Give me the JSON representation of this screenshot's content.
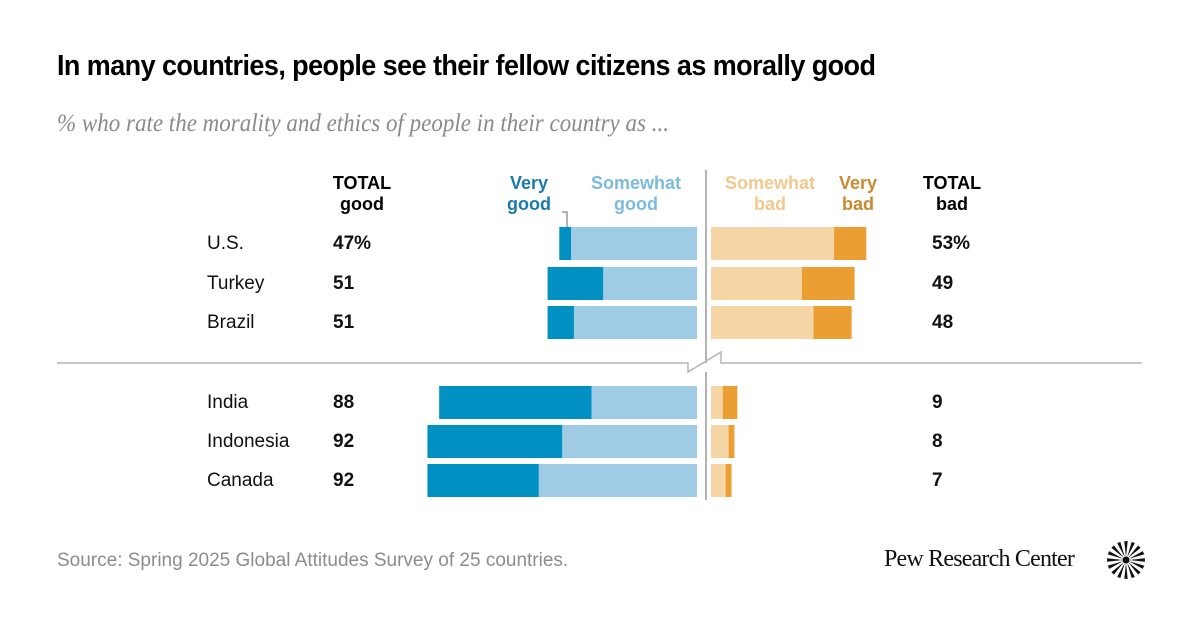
{
  "title": "In many countries, people see their fellow citizens as morally good",
  "subtitle": "% who rate the morality and ethics of people in their country as ...",
  "headers": {
    "total_good": [
      "TOTAL",
      "good"
    ],
    "very_good": [
      "Very",
      "good"
    ],
    "somewhat_good": [
      "Somewhat",
      "good"
    ],
    "somewhat_bad": [
      "Somewhat",
      "bad"
    ],
    "very_bad": [
      "Very",
      "bad"
    ],
    "total_bad": [
      "TOTAL",
      "bad"
    ]
  },
  "colors": {
    "very_good": "#0091c2",
    "somewhat_good": "#9fcbe5",
    "somewhat_bad": "#f6d6a6",
    "very_bad": "#eb9f32",
    "very_good_label": "#1a7aaa",
    "somewhat_good_label": "#7bbcde",
    "somewhat_bad_label": "#f3c88c",
    "very_bad_label": "#c98a2e"
  },
  "chart_data": {
    "type": "bar",
    "orientation": "horizontal-diverging",
    "title": "In many countries, people see their fellow citizens as morally good",
    "subtitle": "% who rate the morality and ethics of people in their country as ...",
    "categories": [
      "U.S.",
      "Turkey",
      "Brazil",
      "India",
      "Indonesia",
      "Canada"
    ],
    "groups": [
      [
        "U.S.",
        "Turkey",
        "Brazil"
      ],
      [
        "India",
        "Indonesia",
        "Canada"
      ]
    ],
    "series": [
      {
        "name": "Very good",
        "values": [
          4,
          19,
          9,
          52,
          46,
          38
        ]
      },
      {
        "name": "Somewhat good",
        "values": [
          43,
          32,
          42,
          36,
          46,
          54
        ]
      },
      {
        "name": "Somewhat bad",
        "values": [
          42,
          31,
          35,
          4,
          6,
          5
        ]
      },
      {
        "name": "Very bad",
        "values": [
          11,
          18,
          13,
          5,
          2,
          2
        ]
      }
    ],
    "total_good_labels": [
      "47%",
      "51",
      "51",
      "88",
      "92",
      "92"
    ],
    "total_bad_labels": [
      "53%",
      "49",
      "48",
      "9",
      "8",
      "7"
    ],
    "unit": "%",
    "legend": "top (column headers)"
  },
  "footer": {
    "source": "Source: Spring 2025 Global Attitudes Survey of 25 countries.",
    "logo_text": "Pew Research Center"
  }
}
